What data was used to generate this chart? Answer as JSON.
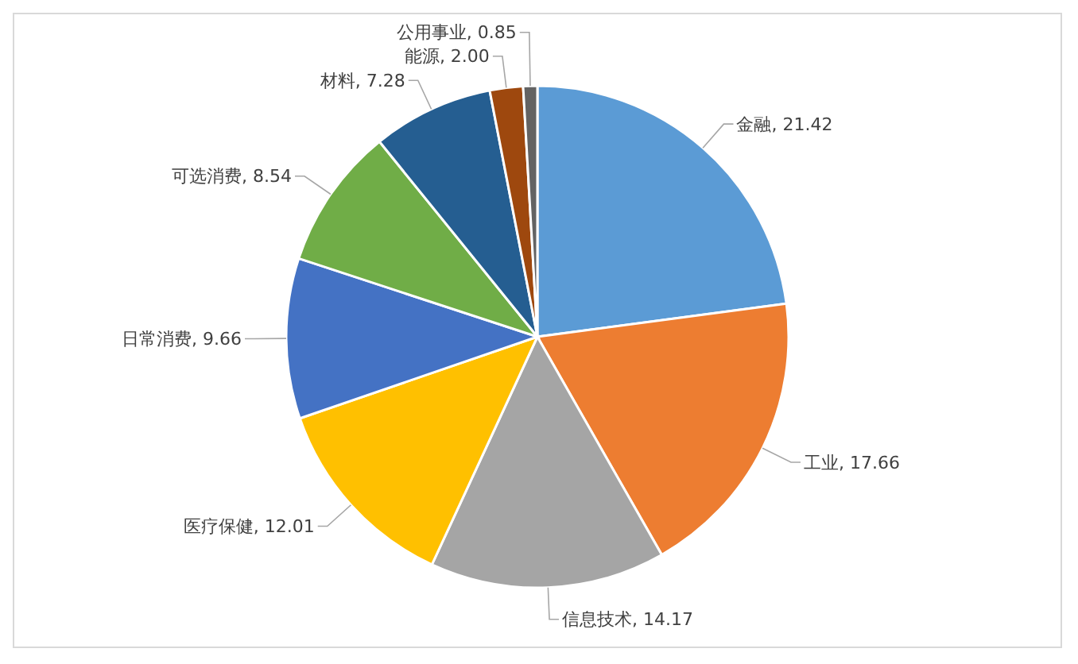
{
  "chart_data": {
    "type": "pie",
    "categories": [
      "金融",
      "工业",
      "信息技术",
      "医疗保健",
      "日常消费",
      "可选消费",
      "材料",
      "能源",
      "公用事业"
    ],
    "values": [
      21.42,
      17.66,
      14.17,
      12.01,
      9.66,
      8.54,
      7.28,
      2.0,
      0.85
    ],
    "value_labels": [
      "21.42",
      "17.66",
      "14.17",
      "12.01",
      "9.66",
      "8.54",
      "7.28",
      "2.00",
      "0.85"
    ],
    "colors": [
      "#5b9bd5",
      "#ed7d31",
      "#a5a5a5",
      "#ffc000",
      "#4472c4",
      "#70ad47",
      "#255e91",
      "#9e480e",
      "#636363"
    ]
  }
}
